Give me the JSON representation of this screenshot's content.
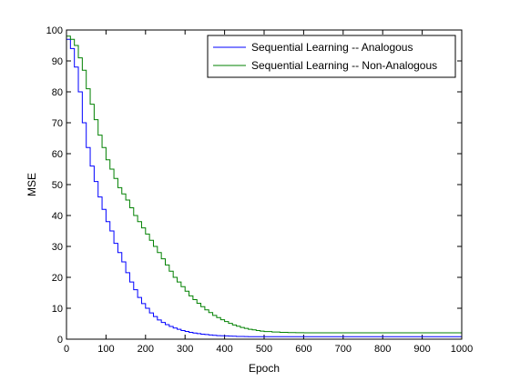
{
  "chart_data": {
    "type": "line",
    "title": "",
    "xlabel": "Epoch",
    "ylabel": "MSE",
    "xlim": [
      0,
      1000
    ],
    "ylim": [
      0,
      100
    ],
    "xticks": [
      0,
      100,
      200,
      300,
      400,
      500,
      600,
      700,
      800,
      900,
      1000
    ],
    "yticks": [
      0,
      10,
      20,
      30,
      40,
      50,
      60,
      70,
      80,
      90,
      100
    ],
    "grid": false,
    "legend_position": "top-right",
    "step_style": true,
    "series": [
      {
        "name": "Sequential Learning -- Analogous",
        "color": "#0000ff",
        "x": [
          0,
          10,
          20,
          30,
          40,
          50,
          60,
          70,
          80,
          90,
          100,
          110,
          120,
          130,
          140,
          150,
          160,
          170,
          180,
          190,
          200,
          210,
          220,
          230,
          240,
          250,
          260,
          270,
          280,
          290,
          300,
          310,
          320,
          330,
          340,
          350,
          360,
          370,
          380,
          390,
          400,
          410,
          420,
          430,
          440,
          450,
          460,
          470,
          480,
          490,
          500,
          600,
          700,
          800,
          900,
          1000
        ],
        "y": [
          97,
          94,
          88,
          80,
          70,
          62,
          56,
          51,
          46,
          42,
          38,
          35,
          31,
          28,
          25,
          21.5,
          18.5,
          16,
          13.5,
          11.5,
          10,
          8.5,
          7.3,
          6.2,
          5.4,
          4.7,
          4.1,
          3.6,
          3.2,
          2.8,
          2.5,
          2.2,
          2,
          1.8,
          1.6,
          1.5,
          1.35,
          1.25,
          1.15,
          1.1,
          1.05,
          1.0,
          0.95,
          0.9,
          0.88,
          0.85,
          0.82,
          0.8,
          0.8,
          0.8,
          0.8,
          0.8,
          0.8,
          0.8,
          0.8,
          0.8
        ]
      },
      {
        "name": "Sequential Learning -- Non-Analogous",
        "color": "#008000",
        "x": [
          0,
          10,
          20,
          30,
          40,
          50,
          60,
          70,
          80,
          90,
          100,
          110,
          120,
          130,
          140,
          150,
          160,
          170,
          180,
          190,
          200,
          210,
          220,
          230,
          240,
          250,
          260,
          270,
          280,
          290,
          300,
          310,
          320,
          330,
          340,
          350,
          360,
          370,
          380,
          390,
          400,
          410,
          420,
          430,
          440,
          450,
          460,
          470,
          480,
          490,
          500,
          520,
          540,
          560,
          580,
          600,
          700,
          800,
          900,
          1000
        ],
        "y": [
          98,
          97,
          95,
          91,
          87,
          81,
          76,
          71,
          66,
          62,
          58,
          55,
          52,
          49,
          47,
          45,
          42.5,
          40,
          38,
          36,
          34,
          32,
          30,
          28,
          26,
          24,
          22,
          20,
          18.5,
          17,
          15.5,
          14,
          12.8,
          11.6,
          10.5,
          9.5,
          8.6,
          7.7,
          7,
          6.3,
          5.7,
          5.1,
          4.6,
          4.2,
          3.8,
          3.5,
          3.2,
          3,
          2.8,
          2.6,
          2.45,
          2.3,
          2.2,
          2.15,
          2.1,
          2.05,
          2.05,
          2.05,
          2.05,
          2.05
        ]
      }
    ]
  }
}
